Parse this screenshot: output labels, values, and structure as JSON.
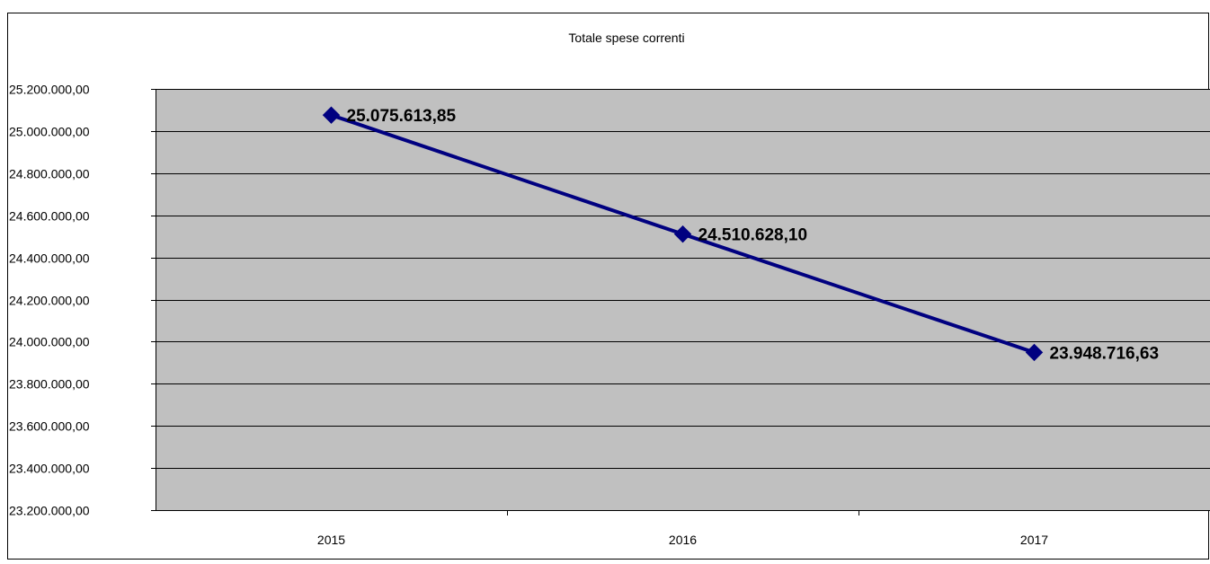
{
  "colors": {
    "plot_background": "#c0c0c0",
    "line": "#000080",
    "marker": "#000080",
    "grid": "#000000",
    "text": "#000000"
  },
  "chart_data": {
    "type": "line",
    "title": "Totale spese correnti",
    "categories": [
      "2015",
      "2016",
      "2017"
    ],
    "series": [
      {
        "values": [
          25075613.85,
          24510628.1,
          23948716.63
        ],
        "data_labels": [
          "25.075.613,85",
          "24.510.628,10",
          "23.948.716,63"
        ]
      }
    ],
    "ylim": [
      23200000,
      25200000
    ],
    "y_ticks": [
      23200000,
      23400000,
      23600000,
      23800000,
      24000000,
      24200000,
      24400000,
      24600000,
      24800000,
      25000000,
      25200000
    ],
    "y_tick_labels": [
      "23.200.000,00",
      "23.400.000,00",
      "23.600.000,00",
      "23.800.000,00",
      "24.000.000,00",
      "24.200.000,00",
      "24.400.000,00",
      "24.600.000,00",
      "24.800.000,00",
      "25.000.000,00",
      "25.200.000,00"
    ],
    "grid": true,
    "legend": "none",
    "marker": "diamond"
  }
}
